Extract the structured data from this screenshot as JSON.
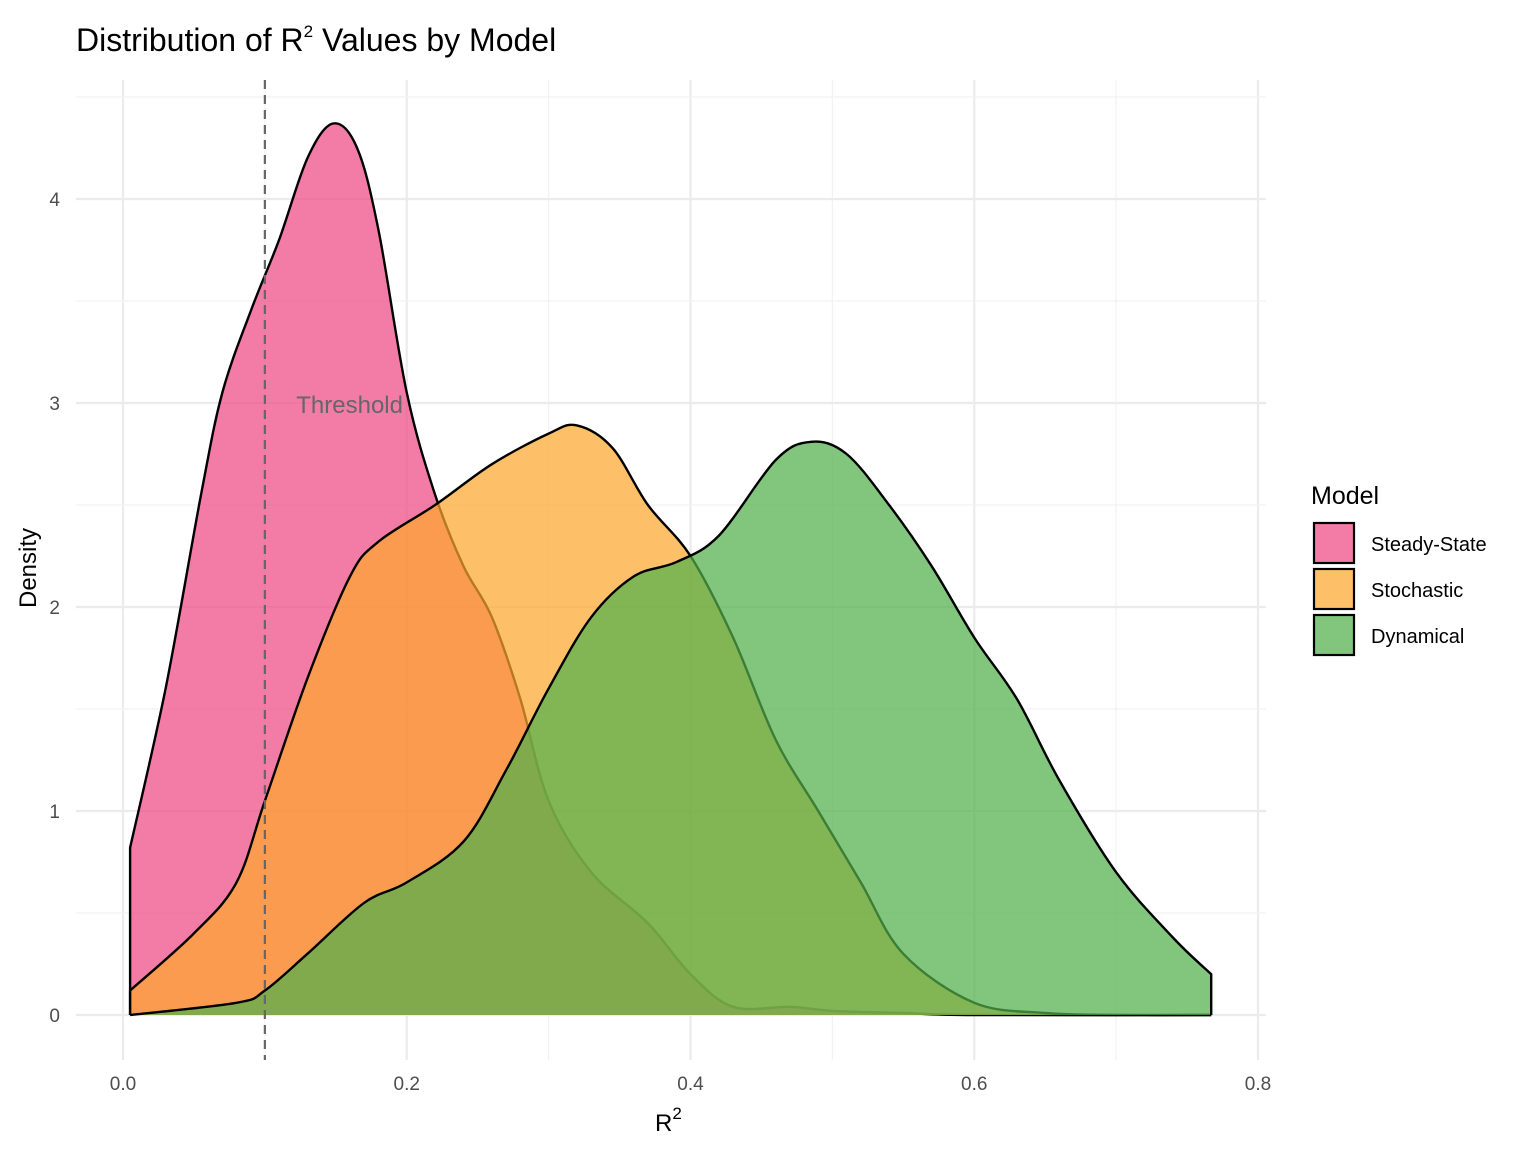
{
  "chart_data": {
    "type": "area",
    "title": "Distribution of R",
    "title_sup": "2",
    "title_rest": " Values by Model",
    "xlabel": "R",
    "xlabel_sup": "2",
    "ylabel": "Density",
    "xlim": [
      0.0,
      0.8
    ],
    "ylim": [
      0,
      4.5
    ],
    "x_ticks": [
      0.0,
      0.2,
      0.4,
      0.6,
      0.8
    ],
    "x_tick_labels": [
      "0.0",
      "0.2",
      "0.4",
      "0.6",
      "0.8"
    ],
    "y_ticks": [
      0,
      1,
      2,
      3,
      4
    ],
    "y_tick_labels": [
      "0",
      "1",
      "2",
      "3",
      "4"
    ],
    "grid": true,
    "legend_title": "Model",
    "legend_position": "right",
    "threshold": {
      "x": 0.1,
      "label": "Threshold",
      "label_x": 0.12,
      "label_y": 2.95
    },
    "series": [
      {
        "name": "Steady-State",
        "color": "#EE4A85",
        "points": [
          [
            0.005,
            0.82
          ],
          [
            0.03,
            1.6
          ],
          [
            0.055,
            2.55
          ],
          [
            0.07,
            3.05
          ],
          [
            0.09,
            3.45
          ],
          [
            0.11,
            3.8
          ],
          [
            0.13,
            4.2
          ],
          [
            0.148,
            4.37
          ],
          [
            0.165,
            4.25
          ],
          [
            0.18,
            3.85
          ],
          [
            0.2,
            3.05
          ],
          [
            0.22,
            2.55
          ],
          [
            0.24,
            2.2
          ],
          [
            0.26,
            1.95
          ],
          [
            0.28,
            1.55
          ],
          [
            0.3,
            1.05
          ],
          [
            0.33,
            0.7
          ],
          [
            0.37,
            0.45
          ],
          [
            0.4,
            0.2
          ],
          [
            0.43,
            0.04
          ],
          [
            0.47,
            0.04
          ],
          [
            0.5,
            0.02
          ],
          [
            0.55,
            0.01
          ],
          [
            0.6,
            0.0
          ],
          [
            0.767,
            0.0
          ]
        ]
      },
      {
        "name": "Stochastic",
        "color": "#FCA82E",
        "points": [
          [
            0.005,
            0.12
          ],
          [
            0.05,
            0.4
          ],
          [
            0.08,
            0.65
          ],
          [
            0.1,
            1.05
          ],
          [
            0.13,
            1.65
          ],
          [
            0.16,
            2.15
          ],
          [
            0.18,
            2.32
          ],
          [
            0.22,
            2.5
          ],
          [
            0.26,
            2.7
          ],
          [
            0.3,
            2.85
          ],
          [
            0.32,
            2.89
          ],
          [
            0.345,
            2.78
          ],
          [
            0.37,
            2.5
          ],
          [
            0.4,
            2.25
          ],
          [
            0.43,
            1.85
          ],
          [
            0.46,
            1.35
          ],
          [
            0.49,
            1.0
          ],
          [
            0.52,
            0.65
          ],
          [
            0.55,
            0.3
          ],
          [
            0.6,
            0.06
          ],
          [
            0.65,
            0.01
          ],
          [
            0.7,
            0.0
          ],
          [
            0.767,
            0.0
          ]
        ]
      },
      {
        "name": "Dynamical",
        "color": "#52B04C",
        "points": [
          [
            0.005,
            0.0
          ],
          [
            0.08,
            0.06
          ],
          [
            0.1,
            0.12
          ],
          [
            0.13,
            0.3
          ],
          [
            0.17,
            0.55
          ],
          [
            0.2,
            0.65
          ],
          [
            0.24,
            0.85
          ],
          [
            0.27,
            1.2
          ],
          [
            0.3,
            1.6
          ],
          [
            0.33,
            1.95
          ],
          [
            0.36,
            2.15
          ],
          [
            0.39,
            2.22
          ],
          [
            0.42,
            2.35
          ],
          [
            0.46,
            2.72
          ],
          [
            0.485,
            2.81
          ],
          [
            0.51,
            2.75
          ],
          [
            0.54,
            2.5
          ],
          [
            0.57,
            2.2
          ],
          [
            0.6,
            1.85
          ],
          [
            0.63,
            1.55
          ],
          [
            0.66,
            1.15
          ],
          [
            0.7,
            0.7
          ],
          [
            0.74,
            0.38
          ],
          [
            0.767,
            0.2
          ]
        ]
      }
    ]
  }
}
